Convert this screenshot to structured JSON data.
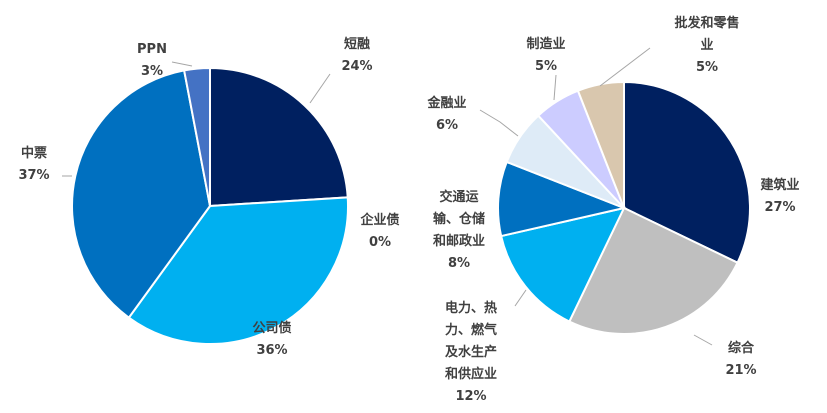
{
  "chart_data": [
    {
      "type": "pie",
      "slices": [
        {
          "label": "短融",
          "value": 24,
          "value_label": "24%",
          "color": "#002060"
        },
        {
          "label": "企业债",
          "value": 0,
          "value_label": "0%",
          "color": "#0070C0"
        },
        {
          "label": "公司债",
          "value": 36,
          "value_label": "36%",
          "color": "#00B0F0"
        },
        {
          "label": "中票",
          "value": 37,
          "value_label": "37%",
          "color": "#0070C0"
        },
        {
          "label": "PPN",
          "value": 3,
          "value_label": "3%",
          "color": "#4472C4"
        }
      ]
    },
    {
      "type": "pie",
      "slices": [
        {
          "label": "建筑业",
          "value": 27,
          "value_label": "27%",
          "color": "#002060"
        },
        {
          "label": "综合",
          "value": 21,
          "value_label": "21%",
          "color": "#BFBFBF"
        },
        {
          "label": "电力、热力、燃气及水生产和供应业",
          "value": 12,
          "value_label": "12%",
          "color": "#00B0F0"
        },
        {
          "label": "交通运输、仓储和邮政业",
          "value": 8,
          "value_label": "8%",
          "color": "#0070C0"
        },
        {
          "label": "金融业",
          "value": 6,
          "value_label": "6%",
          "color": "#DEEBF7"
        },
        {
          "label": "制造业",
          "value": 5,
          "value_label": "5%",
          "color": "#CCCCFF"
        },
        {
          "label": "批发和零售业",
          "value": 5,
          "value_label": "5%",
          "color": "#D9C7AE"
        }
      ]
    }
  ]
}
